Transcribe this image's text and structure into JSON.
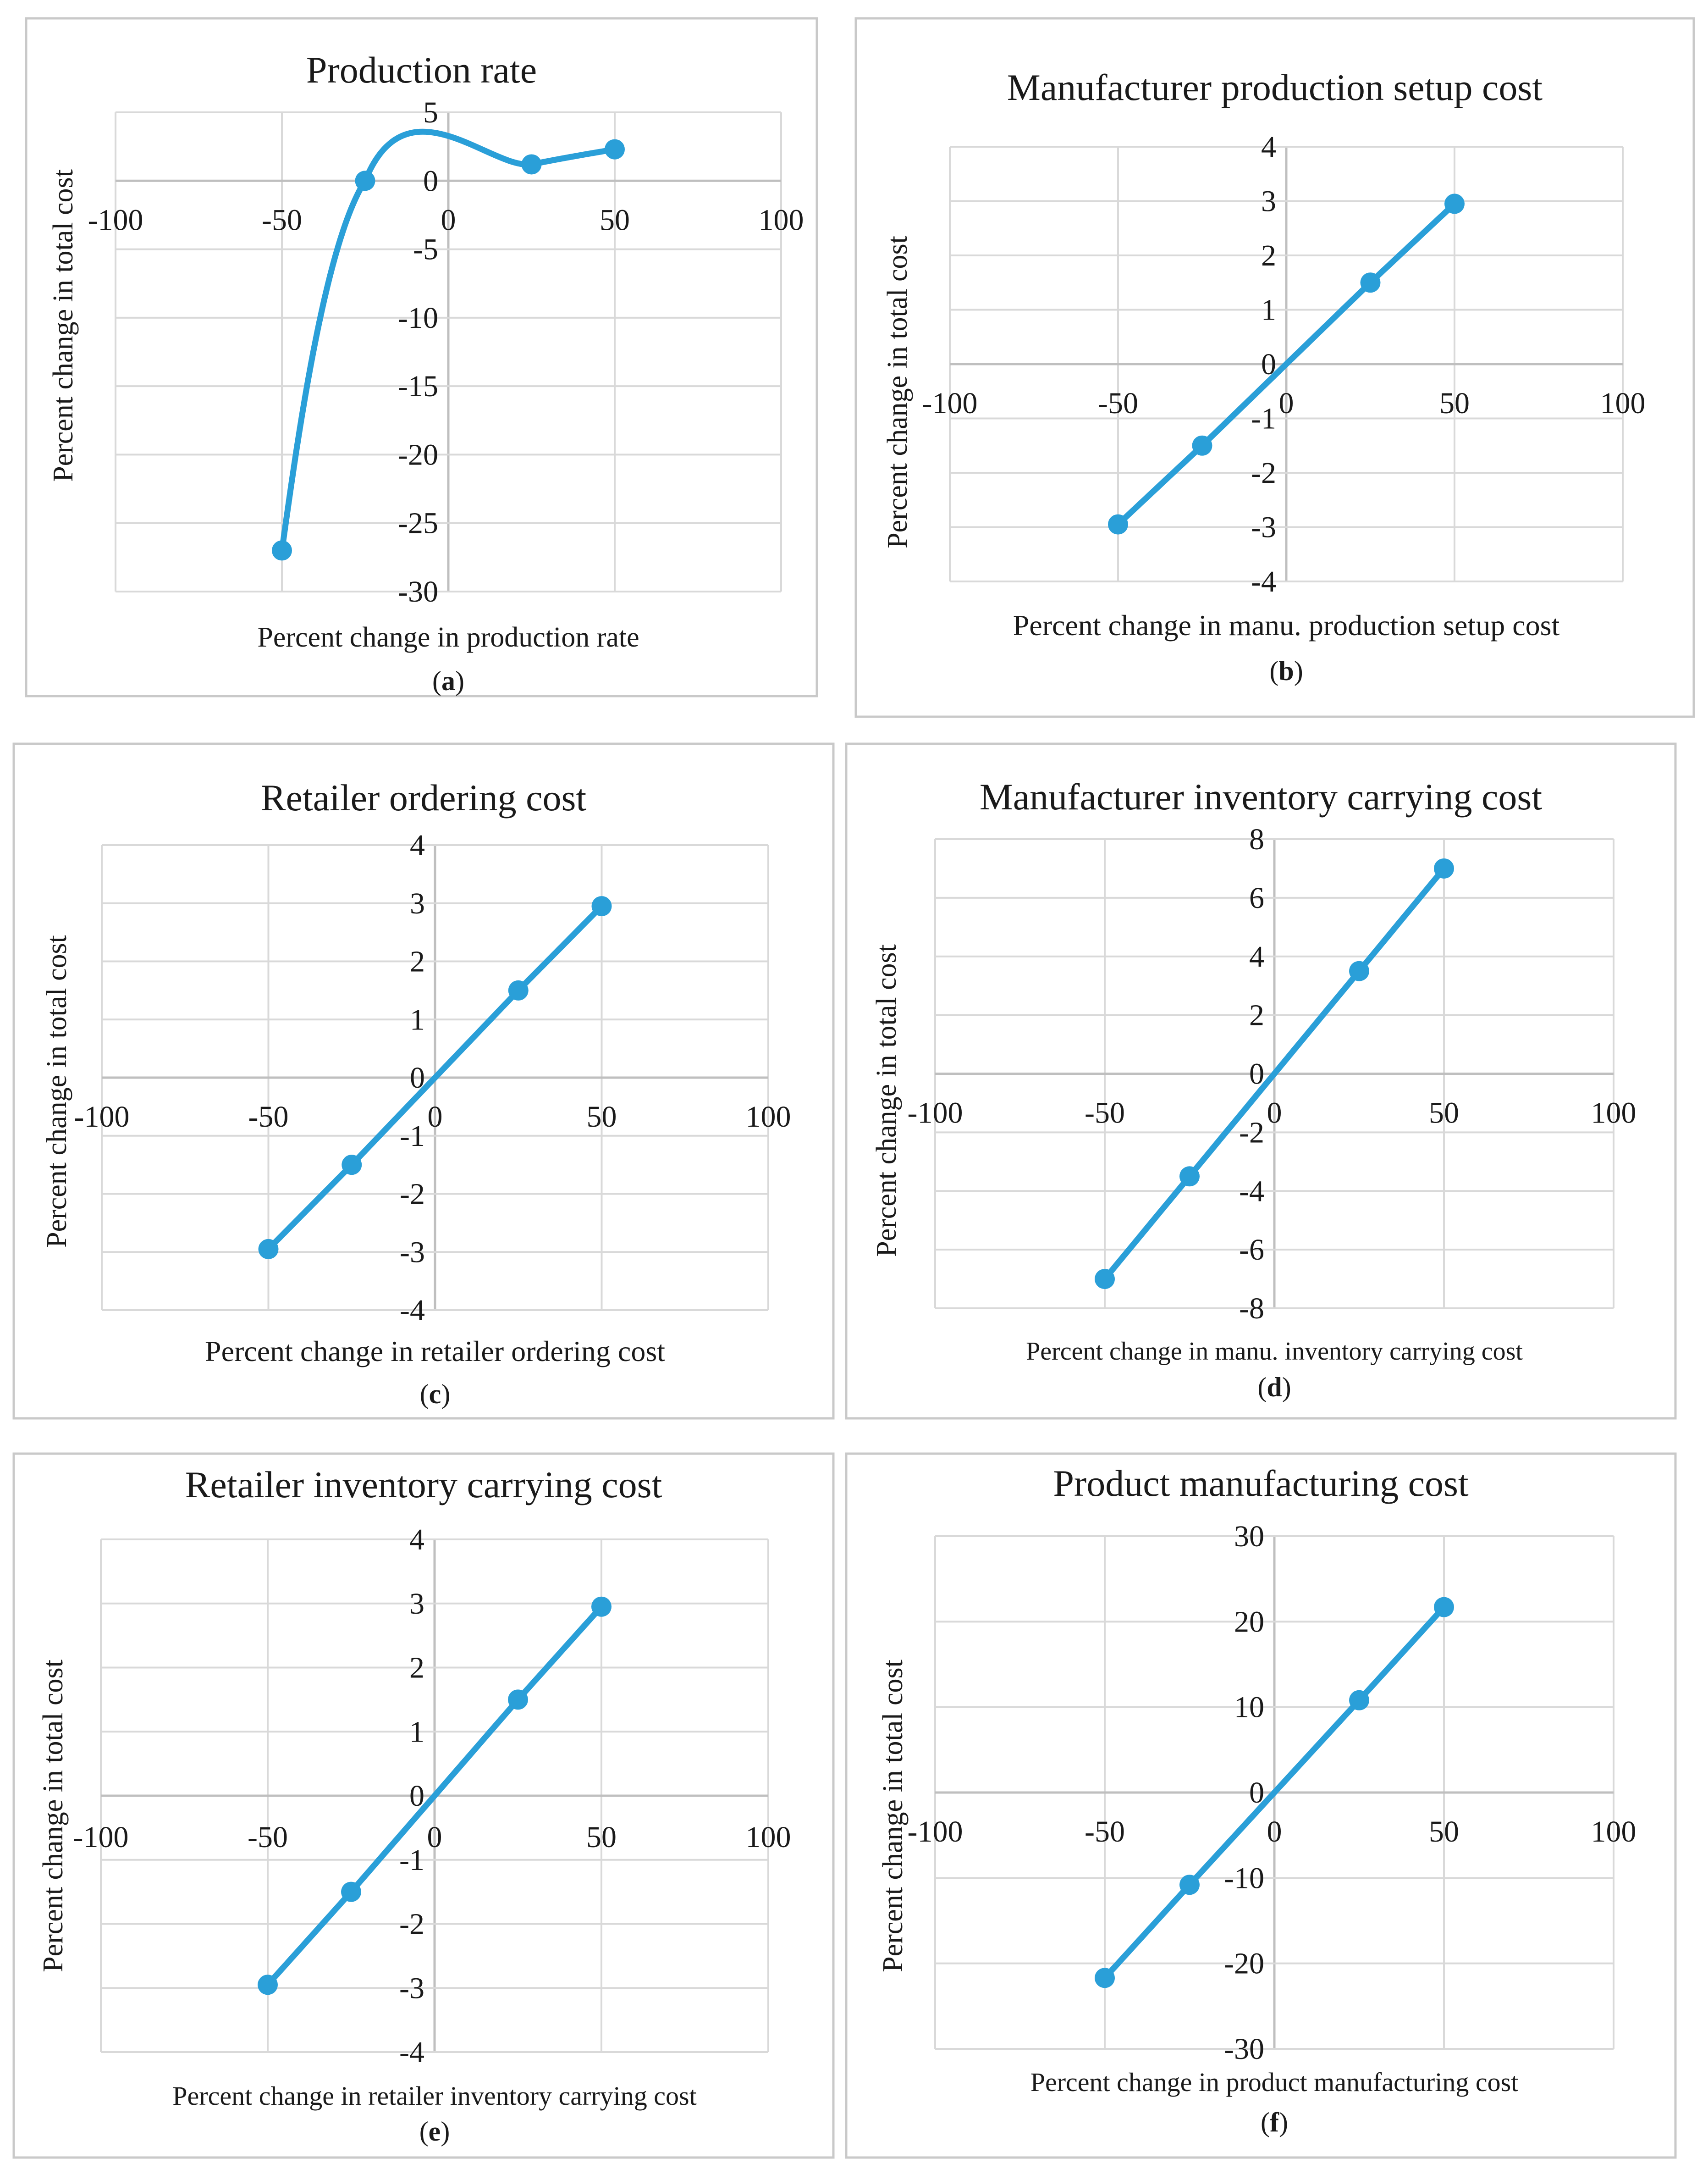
{
  "colors": {
    "series": "#2a9fd8"
  },
  "chart_data": [
    {
      "type": "line",
      "title": "Production rate",
      "xlabel": "Percent change in production rate",
      "ylabel": "Percent change in total cost",
      "panel_letter": "a",
      "x": [
        -50,
        -25,
        25,
        50
      ],
      "values": [
        -27,
        0,
        1.2,
        2.3
      ],
      "xlim": [
        -100,
        100
      ],
      "ylim": [
        -30,
        5
      ],
      "yticks": [
        5,
        0,
        -5,
        -10,
        -15,
        -20,
        -25,
        -30
      ],
      "xticks": [
        -100,
        -50,
        0,
        50,
        100
      ],
      "smooth": true,
      "grid": true
    },
    {
      "type": "line",
      "title": "Manufacturer production setup cost",
      "xlabel": "Percent change in manu. production setup cost",
      "ylabel": "Percent change in total cost",
      "panel_letter": "b",
      "x": [
        -50,
        -25,
        25,
        50
      ],
      "values": [
        -2.95,
        -1.5,
        1.5,
        2.95
      ],
      "xlim": [
        -100,
        100
      ],
      "ylim": [
        -4,
        4
      ],
      "yticks": [
        4,
        3,
        2,
        1,
        0,
        -1,
        -2,
        -3,
        -4
      ],
      "xticks": [
        -100,
        -50,
        0,
        50,
        100
      ],
      "smooth": false,
      "grid": true
    },
    {
      "type": "line",
      "title": "Retailer ordering cost",
      "xlabel": "Percent change in retailer ordering cost",
      "ylabel": "Percent change in total cost",
      "panel_letter": "c",
      "x": [
        -50,
        -25,
        25,
        50
      ],
      "values": [
        -2.95,
        -1.5,
        1.5,
        2.95
      ],
      "xlim": [
        -100,
        100
      ],
      "ylim": [
        -4,
        4
      ],
      "yticks": [
        4,
        3,
        2,
        1,
        0,
        -1,
        -2,
        -3,
        -4
      ],
      "xticks": [
        -100,
        -50,
        0,
        50,
        100
      ],
      "smooth": false,
      "grid": true
    },
    {
      "type": "line",
      "title": "Manufacturer inventory carrying cost",
      "xlabel": "Percent change in manu. inventory carrying cost",
      "ylabel": "Percent change in total cost",
      "panel_letter": "d",
      "x": [
        -50,
        -25,
        25,
        50
      ],
      "values": [
        -7,
        -3.5,
        3.5,
        7
      ],
      "xlim": [
        -100,
        100
      ],
      "ylim": [
        -8,
        8
      ],
      "yticks": [
        8,
        6,
        4,
        2,
        0,
        -2,
        -4,
        -6,
        -8
      ],
      "xticks": [
        -100,
        -50,
        0,
        50,
        100
      ],
      "smooth": false,
      "grid": true
    },
    {
      "type": "line",
      "title": "Retailer inventory carrying cost",
      "xlabel": "Percent change in retailer inventory carrying cost",
      "ylabel": "Percent change in total cost",
      "panel_letter": "e",
      "x": [
        -50,
        -25,
        25,
        50
      ],
      "values": [
        -2.95,
        -1.5,
        1.5,
        2.95
      ],
      "xlim": [
        -100,
        100
      ],
      "ylim": [
        -4,
        4
      ],
      "yticks": [
        4,
        3,
        2,
        1,
        0,
        -1,
        -2,
        -3,
        -4
      ],
      "xticks": [
        -100,
        -50,
        0,
        50,
        100
      ],
      "smooth": false,
      "grid": true
    },
    {
      "type": "line",
      "title": "Product manufacturing cost",
      "xlabel": "Percent change in product manufacturing cost",
      "ylabel": "Percent change in total cost",
      "panel_letter": "f",
      "x": [
        -50,
        -25,
        25,
        50
      ],
      "values": [
        -21.7,
        -10.8,
        10.8,
        21.7
      ],
      "xlim": [
        -100,
        100
      ],
      "ylim": [
        -30,
        30
      ],
      "yticks": [
        30,
        20,
        10,
        0,
        -10,
        -20,
        -30
      ],
      "xticks": [
        -100,
        -50,
        0,
        50,
        100
      ],
      "smooth": false,
      "grid": true
    }
  ]
}
